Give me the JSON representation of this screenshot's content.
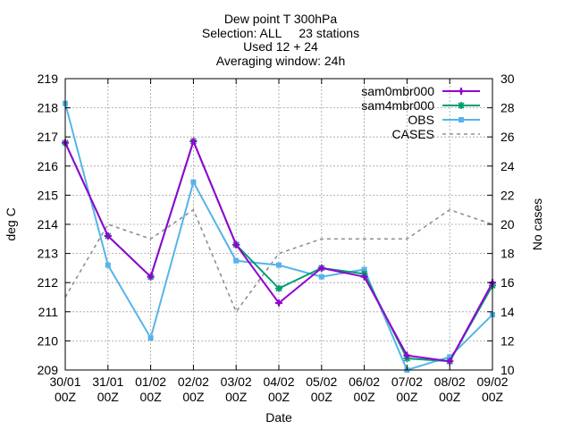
{
  "chart_data": {
    "type": "line",
    "title_lines": [
      "Dew point T 300hPa",
      "Selection: ALL     23 stations",
      "Used 12 + 24",
      "Averaging window: 24h"
    ],
    "xlabel": "Date",
    "ylabel": "deg C",
    "y2label": "No cases",
    "categories": [
      [
        "30/01",
        "00Z"
      ],
      [
        "31/01",
        "00Z"
      ],
      [
        "01/02",
        "00Z"
      ],
      [
        "02/02",
        "00Z"
      ],
      [
        "03/02",
        "00Z"
      ],
      [
        "04/02",
        "00Z"
      ],
      [
        "05/02",
        "00Z"
      ],
      [
        "06/02",
        "00Z"
      ],
      [
        "07/02",
        "00Z"
      ],
      [
        "08/02",
        "00Z"
      ],
      [
        "09/02",
        "00Z"
      ]
    ],
    "ylim": [
      209,
      219
    ],
    "yticks": [
      209,
      210,
      211,
      212,
      213,
      214,
      215,
      216,
      217,
      218,
      219
    ],
    "y2lim": [
      10,
      30
    ],
    "y2ticks": [
      10,
      12,
      14,
      16,
      18,
      20,
      22,
      24,
      26,
      28,
      30
    ],
    "grid": true,
    "legend_position": "top-right",
    "series": [
      {
        "name": "sam0mbr000",
        "color": "#9400d3",
        "axis": "left",
        "marker": "plus",
        "values": [
          216.8,
          213.6,
          212.2,
          216.85,
          213.3,
          211.3,
          212.5,
          212.2,
          209.5,
          209.3,
          212.0
        ]
      },
      {
        "name": "sam4mbr000",
        "color": "#009e73",
        "axis": "left",
        "marker": "star",
        "values": [
          216.8,
          213.6,
          212.2,
          216.85,
          213.3,
          211.8,
          212.5,
          212.3,
          209.4,
          209.3,
          211.9
        ]
      },
      {
        "name": "OBS",
        "color": "#56b4e9",
        "axis": "left",
        "marker": "square",
        "values": [
          218.15,
          212.6,
          210.1,
          215.45,
          212.75,
          212.6,
          212.2,
          212.45,
          209.0,
          209.45,
          210.9
        ]
      },
      {
        "name": "CASES",
        "color": "#909090",
        "axis": "right",
        "dashed": true,
        "values": [
          15,
          20,
          19,
          21,
          14,
          18,
          19,
          19,
          19,
          21,
          20
        ]
      }
    ]
  }
}
